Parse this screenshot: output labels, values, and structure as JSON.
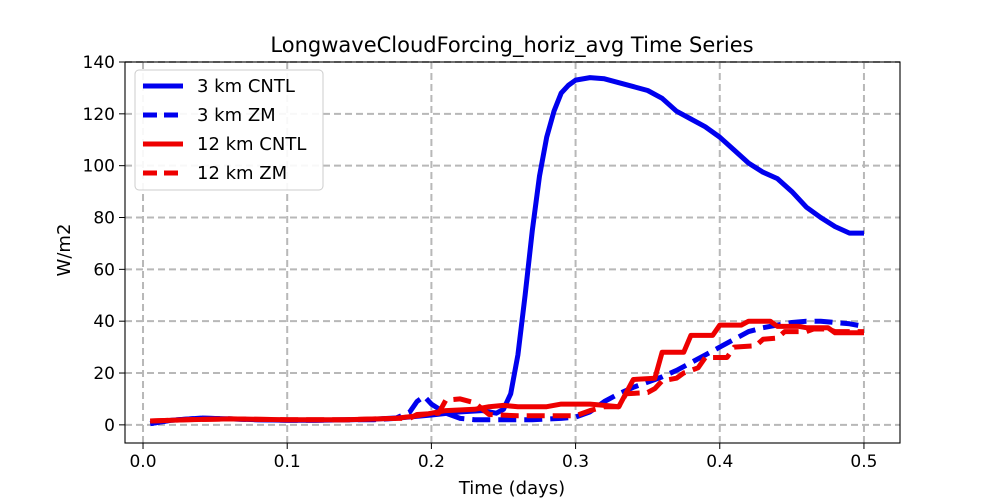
{
  "chart_data": {
    "type": "line",
    "title": "LongwaveCloudForcing_horiz_avg Time Series",
    "xlabel": "Time (days)",
    "ylabel": "W/m2",
    "xlim": [
      -0.0125,
      0.525
    ],
    "ylim": [
      -7,
      140
    ],
    "xticks": [
      0.0,
      0.1,
      0.2,
      0.3,
      0.4,
      0.5
    ],
    "xtick_labels": [
      "0.0",
      "0.1",
      "0.2",
      "0.3",
      "0.4",
      "0.5"
    ],
    "yticks": [
      0,
      20,
      40,
      60,
      80,
      100,
      120,
      140
    ],
    "ytick_labels": [
      "0",
      "20",
      "40",
      "60",
      "80",
      "100",
      "120",
      "140"
    ],
    "grid": true,
    "legend_position": "top-left",
    "series": [
      {
        "name": "3 km CNTL",
        "color": "#0000ee",
        "style": "solid",
        "points": [
          [
            0.005,
            0.5
          ],
          [
            0.02,
            1.8
          ],
          [
            0.04,
            2.6
          ],
          [
            0.06,
            2.3
          ],
          [
            0.08,
            2.0
          ],
          [
            0.1,
            1.8
          ],
          [
            0.12,
            1.8
          ],
          [
            0.14,
            1.9
          ],
          [
            0.16,
            2.2
          ],
          [
            0.18,
            2.8
          ],
          [
            0.2,
            3.8
          ],
          [
            0.22,
            5.0
          ],
          [
            0.235,
            5.5
          ],
          [
            0.245,
            4.5
          ],
          [
            0.25,
            6.0
          ],
          [
            0.255,
            12.0
          ],
          [
            0.26,
            27.0
          ],
          [
            0.265,
            50.0
          ],
          [
            0.27,
            75.0
          ],
          [
            0.275,
            96.0
          ],
          [
            0.28,
            111.0
          ],
          [
            0.285,
            121.0
          ],
          [
            0.29,
            128.0
          ],
          [
            0.295,
            131.0
          ],
          [
            0.3,
            133.0
          ],
          [
            0.31,
            134.0
          ],
          [
            0.32,
            133.5
          ],
          [
            0.33,
            132.0
          ],
          [
            0.34,
            130.5
          ],
          [
            0.35,
            129.0
          ],
          [
            0.36,
            126.0
          ],
          [
            0.37,
            121.0
          ],
          [
            0.38,
            118.0
          ],
          [
            0.39,
            115.0
          ],
          [
            0.4,
            111.0
          ],
          [
            0.41,
            106.0
          ],
          [
            0.42,
            101.0
          ],
          [
            0.43,
            97.5
          ],
          [
            0.44,
            95.0
          ],
          [
            0.45,
            90.0
          ],
          [
            0.46,
            84.0
          ],
          [
            0.47,
            80.0
          ],
          [
            0.48,
            76.5
          ],
          [
            0.49,
            74.0
          ],
          [
            0.5,
            74.0
          ]
        ]
      },
      {
        "name": "3 km ZM",
        "color": "#0000ee",
        "style": "dashed",
        "points": [
          [
            0.005,
            0.5
          ],
          [
            0.02,
            1.8
          ],
          [
            0.04,
            2.6
          ],
          [
            0.06,
            2.3
          ],
          [
            0.08,
            2.0
          ],
          [
            0.1,
            1.8
          ],
          [
            0.12,
            1.8
          ],
          [
            0.14,
            1.9
          ],
          [
            0.16,
            2.0
          ],
          [
            0.175,
            2.5
          ],
          [
            0.185,
            5.0
          ],
          [
            0.19,
            9.0
          ],
          [
            0.195,
            11.0
          ],
          [
            0.2,
            8.0
          ],
          [
            0.21,
            4.5
          ],
          [
            0.22,
            2.5
          ],
          [
            0.23,
            2.0
          ],
          [
            0.25,
            2.0
          ],
          [
            0.27,
            2.0
          ],
          [
            0.29,
            2.5
          ],
          [
            0.3,
            3.0
          ],
          [
            0.31,
            5.0
          ],
          [
            0.32,
            9.0
          ],
          [
            0.33,
            12.0
          ],
          [
            0.34,
            14.5
          ],
          [
            0.35,
            16.5
          ],
          [
            0.36,
            18.5
          ],
          [
            0.37,
            21.0
          ],
          [
            0.38,
            24.0
          ],
          [
            0.39,
            27.0
          ],
          [
            0.4,
            30.0
          ],
          [
            0.41,
            33.0
          ],
          [
            0.42,
            36.0
          ],
          [
            0.43,
            37.5
          ],
          [
            0.44,
            38.5
          ],
          [
            0.45,
            39.5
          ],
          [
            0.46,
            40.0
          ],
          [
            0.47,
            40.0
          ],
          [
            0.48,
            39.5
          ],
          [
            0.49,
            39.0
          ],
          [
            0.5,
            38.0
          ]
        ]
      },
      {
        "name": "12 km CNTL",
        "color": "#ee0000",
        "style": "solid",
        "points": [
          [
            0.005,
            1.5
          ],
          [
            0.03,
            2.0
          ],
          [
            0.06,
            2.3
          ],
          [
            0.1,
            2.0
          ],
          [
            0.14,
            2.0
          ],
          [
            0.175,
            2.5
          ],
          [
            0.19,
            3.5
          ],
          [
            0.2,
            4.5
          ],
          [
            0.21,
            5.5
          ],
          [
            0.23,
            6.0
          ],
          [
            0.24,
            7.0
          ],
          [
            0.25,
            7.5
          ],
          [
            0.26,
            7.0
          ],
          [
            0.28,
            7.0
          ],
          [
            0.29,
            8.0
          ],
          [
            0.31,
            8.0
          ],
          [
            0.32,
            7.5
          ],
          [
            0.33,
            7.0
          ],
          [
            0.34,
            17.5
          ],
          [
            0.355,
            18.0
          ],
          [
            0.36,
            28.0
          ],
          [
            0.375,
            28.0
          ],
          [
            0.38,
            34.5
          ],
          [
            0.395,
            34.5
          ],
          [
            0.4,
            38.5
          ],
          [
            0.415,
            38.5
          ],
          [
            0.42,
            40.0
          ],
          [
            0.435,
            40.0
          ],
          [
            0.44,
            38.0
          ],
          [
            0.455,
            38.0
          ],
          [
            0.46,
            37.5
          ],
          [
            0.475,
            37.5
          ],
          [
            0.48,
            35.5
          ],
          [
            0.5,
            35.5
          ]
        ]
      },
      {
        "name": "12 km ZM",
        "color": "#ee0000",
        "style": "dashed",
        "points": [
          [
            0.005,
            1.5
          ],
          [
            0.03,
            2.0
          ],
          [
            0.06,
            2.3
          ],
          [
            0.1,
            2.0
          ],
          [
            0.14,
            2.0
          ],
          [
            0.175,
            2.5
          ],
          [
            0.185,
            2.5
          ],
          [
            0.19,
            4.0
          ],
          [
            0.205,
            4.5
          ],
          [
            0.21,
            9.5
          ],
          [
            0.22,
            10.0
          ],
          [
            0.23,
            8.5
          ],
          [
            0.24,
            4.0
          ],
          [
            0.26,
            3.5
          ],
          [
            0.28,
            3.5
          ],
          [
            0.3,
            3.5
          ],
          [
            0.31,
            5.5
          ],
          [
            0.32,
            7.0
          ],
          [
            0.33,
            7.0
          ],
          [
            0.335,
            12.0
          ],
          [
            0.35,
            12.5
          ],
          [
            0.355,
            14.0
          ],
          [
            0.36,
            17.0
          ],
          [
            0.37,
            18.0
          ],
          [
            0.375,
            20.0
          ],
          [
            0.385,
            22.0
          ],
          [
            0.39,
            26.0
          ],
          [
            0.405,
            26.0
          ],
          [
            0.41,
            30.0
          ],
          [
            0.425,
            30.5
          ],
          [
            0.43,
            33.0
          ],
          [
            0.44,
            33.5
          ],
          [
            0.445,
            36.0
          ],
          [
            0.46,
            36.0
          ],
          [
            0.465,
            37.0
          ],
          [
            0.475,
            37.0
          ],
          [
            0.48,
            36.0
          ],
          [
            0.49,
            36.0
          ],
          [
            0.5,
            36.0
          ]
        ]
      }
    ]
  }
}
